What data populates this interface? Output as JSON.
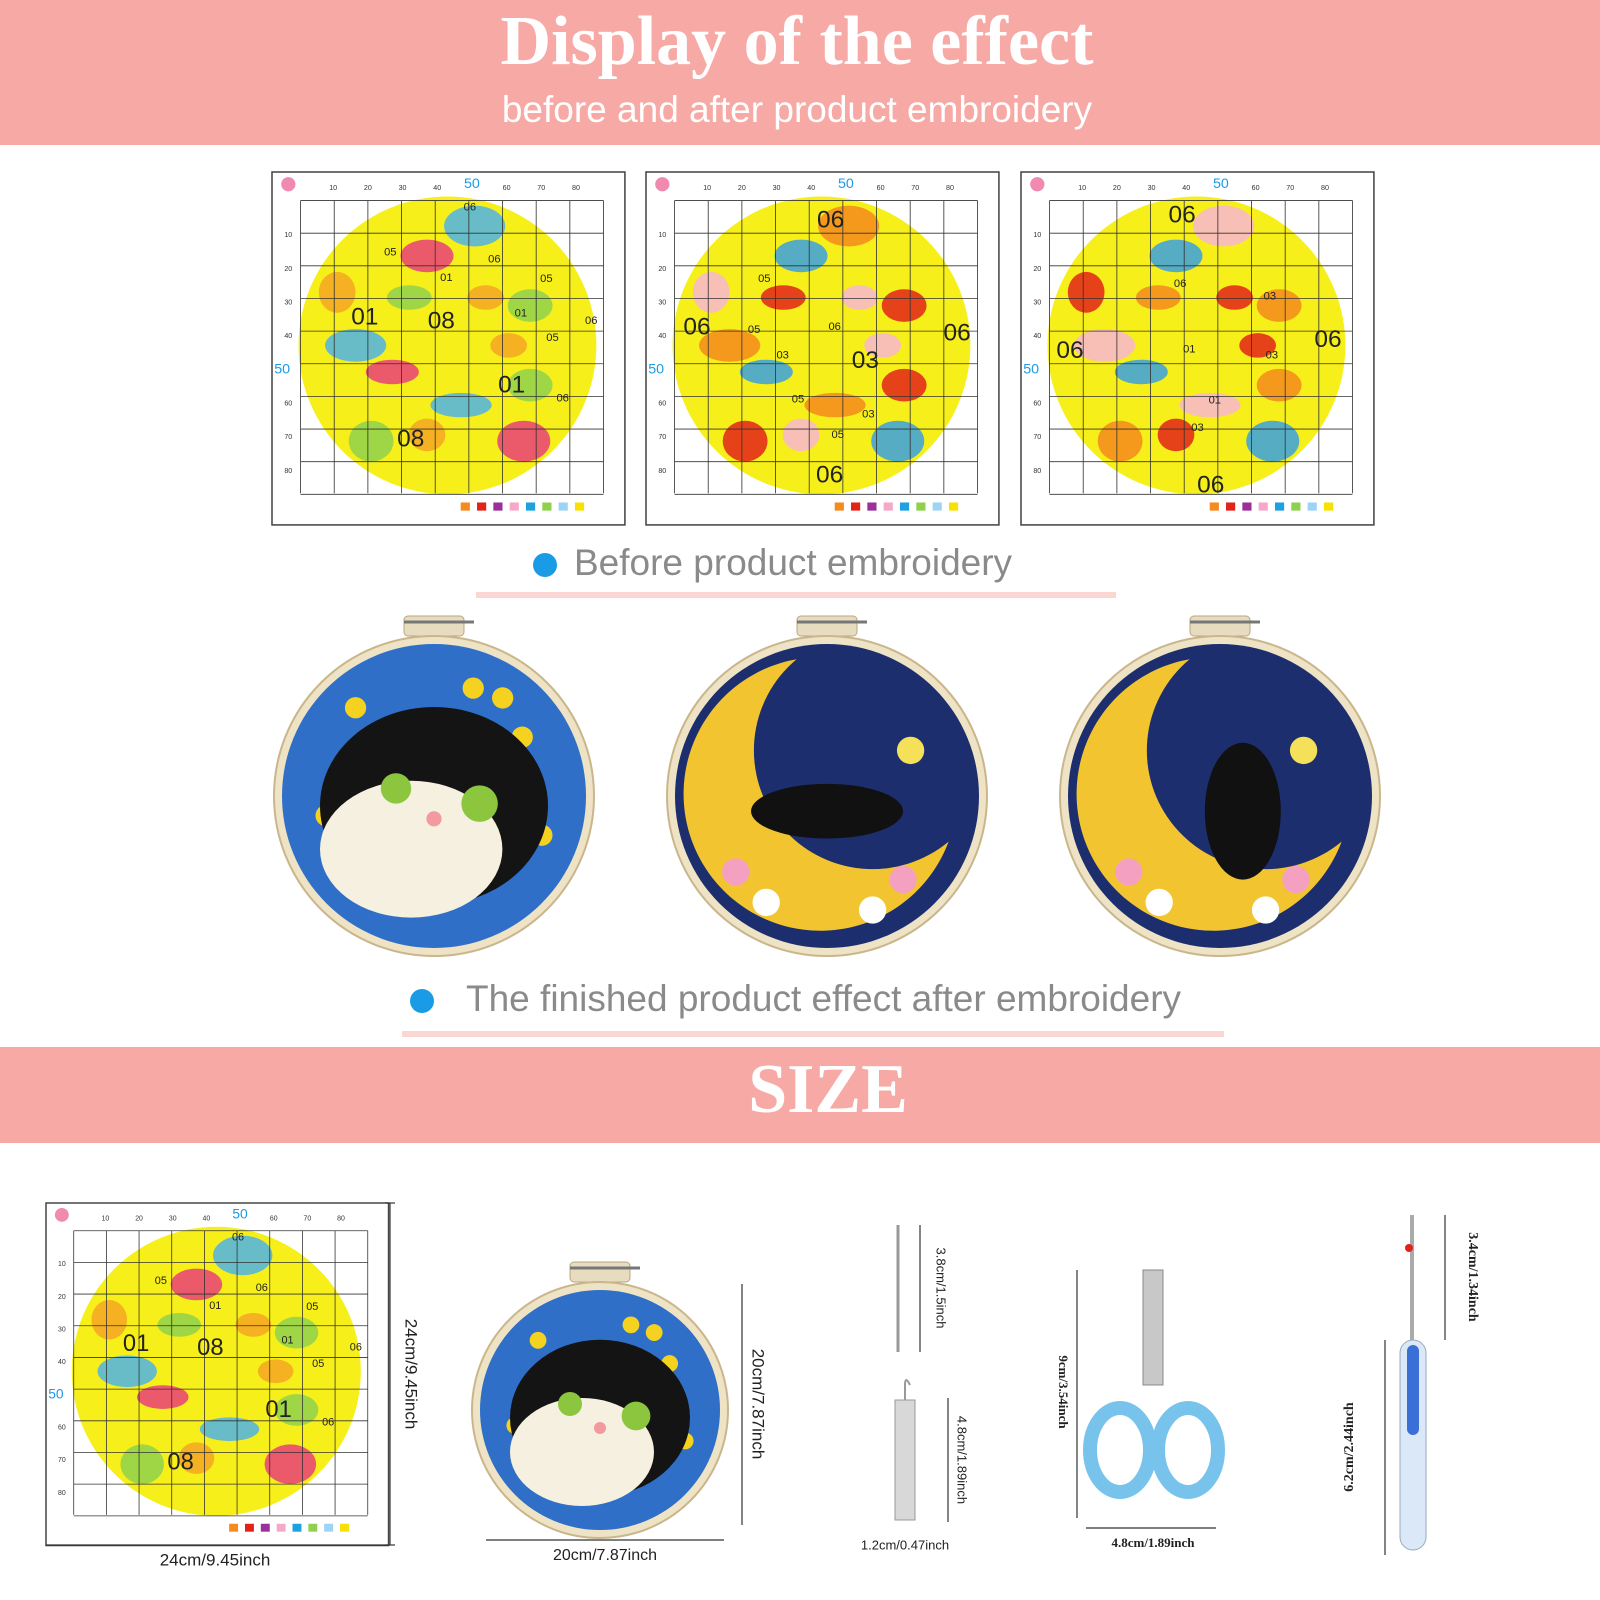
{
  "header": {
    "title": "Display of the effect",
    "subtitle": "before and after product embroidery"
  },
  "pattern_axis": {
    "top": [
      "10",
      "20",
      "30",
      "40",
      "50",
      "60",
      "70",
      "80"
    ],
    "left": [
      "10",
      "20",
      "30",
      "40",
      "50",
      "60",
      "70",
      "80"
    ]
  },
  "patterns": [
    {
      "labels": [
        "06",
        "05",
        "06",
        "01",
        "05",
        "01",
        "08",
        "01",
        "05",
        "06",
        "01",
        "06",
        "08"
      ]
    },
    {
      "labels": [
        "06",
        "05",
        "06",
        "05",
        "06",
        "06",
        "03",
        "03",
        "05",
        "03",
        "05",
        "06"
      ]
    },
    {
      "labels": [
        "06",
        "06",
        "03",
        "06",
        "06",
        "01",
        "03",
        "01",
        "03",
        "06"
      ]
    }
  ],
  "captions": {
    "before": "Before product embroidery",
    "after": "The finished product effect after embroidery"
  },
  "size": {
    "title": "SIZE",
    "pattern_height": "24cm/9.45inch",
    "pattern_width": "24cm/9.45inch",
    "hoop_height": "20cm/7.87inch",
    "hoop_width": "20cm/7.87inch",
    "needle_length": "3.8cm/1.5inch",
    "threader_length": "4.8cm/1.89inch",
    "threader_width": "1.2cm/0.47inch",
    "scissors_length": "9cm/3.54inch",
    "scissors_width": "4.8cm/1.89inch",
    "ripper_tip": "3.4cm/1.34inch",
    "ripper_handle": "6.2cm/2.44inch"
  }
}
